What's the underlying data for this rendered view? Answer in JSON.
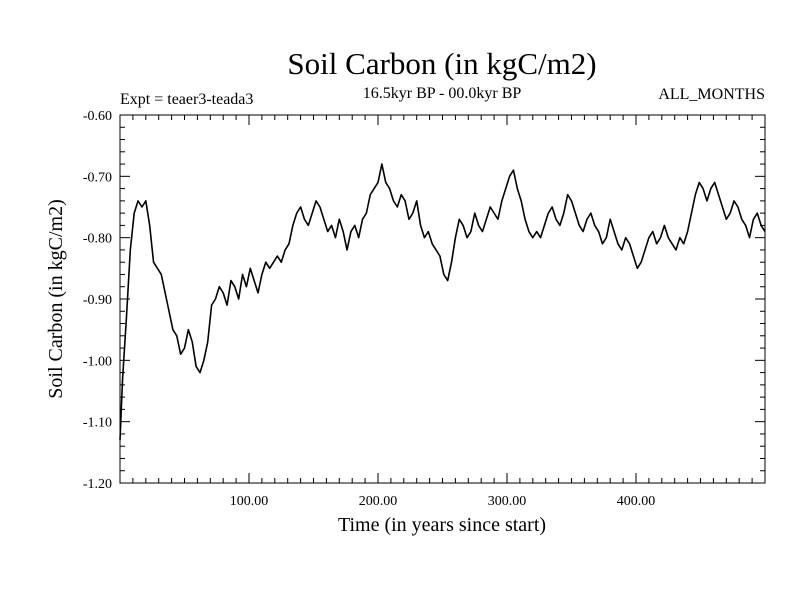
{
  "chart_data": {
    "type": "line",
    "title": "Soil Carbon (in kgC/m2)",
    "subtitle": "16.5kyr BP - 00.0kyr BP",
    "experiment": "Expt = teaer3-teada3",
    "months": "ALL_MONTHS",
    "xlabel": "Time (in years since start)",
    "ylabel": "Soil Carbon (in kgC/m2)",
    "xlim": [
      0,
      500
    ],
    "ylim": [
      -1.2,
      -0.6
    ],
    "x_ticks": [
      100,
      200,
      300,
      400
    ],
    "x_tick_labels": [
      "100.00",
      "200.00",
      "300.00",
      "400.00"
    ],
    "y_ticks": [
      -0.6,
      -0.7,
      -0.8,
      -0.9,
      -1.0,
      -1.1,
      -1.2
    ],
    "y_tick_labels": [
      "-0.60",
      "-0.70",
      "-0.80",
      "-0.90",
      "-1.00",
      "-1.10",
      "-1.20"
    ],
    "series": [
      {
        "name": "Soil Carbon",
        "color": "#000000",
        "x": [
          0,
          2,
          5,
          8,
          11,
          14,
          17,
          20,
          23,
          26,
          29,
          32,
          35,
          38,
          41,
          44,
          47,
          50,
          53,
          56,
          59,
          62,
          65,
          68,
          71,
          74,
          77,
          80,
          83,
          86,
          89,
          92,
          95,
          98,
          101,
          104,
          107,
          110,
          113,
          116,
          119,
          122,
          125,
          128,
          131,
          134,
          137,
          140,
          143,
          146,
          149,
          152,
          155,
          158,
          161,
          164,
          167,
          170,
          173,
          176,
          179,
          182,
          185,
          188,
          191,
          194,
          197,
          200,
          203,
          206,
          209,
          212,
          215,
          218,
          221,
          224,
          227,
          230,
          233,
          236,
          239,
          242,
          245,
          248,
          251,
          254,
          257,
          260,
          263,
          266,
          269,
          272,
          275,
          278,
          281,
          284,
          287,
          290,
          293,
          296,
          299,
          302,
          305,
          308,
          311,
          314,
          317,
          320,
          323,
          326,
          329,
          332,
          335,
          338,
          341,
          344,
          347,
          350,
          353,
          356,
          359,
          362,
          365,
          368,
          371,
          374,
          377,
          380,
          383,
          386,
          389,
          392,
          395,
          398,
          401,
          404,
          407,
          410,
          413,
          416,
          419,
          422,
          425,
          428,
          431,
          434,
          437,
          440,
          443,
          446,
          449,
          452,
          455,
          458,
          461,
          464,
          467,
          470,
          473,
          476,
          479,
          482,
          485,
          488,
          491,
          494,
          497,
          500
        ],
        "values": [
          -1.13,
          -1.03,
          -0.93,
          -0.82,
          -0.76,
          -0.74,
          -0.75,
          -0.74,
          -0.78,
          -0.84,
          -0.85,
          -0.86,
          -0.89,
          -0.92,
          -0.95,
          -0.96,
          -0.99,
          -0.98,
          -0.95,
          -0.97,
          -1.01,
          -1.02,
          -1.0,
          -0.97,
          -0.91,
          -0.9,
          -0.88,
          -0.89,
          -0.91,
          -0.87,
          -0.88,
          -0.9,
          -0.86,
          -0.88,
          -0.85,
          -0.87,
          -0.89,
          -0.86,
          -0.84,
          -0.85,
          -0.84,
          -0.83,
          -0.84,
          -0.82,
          -0.81,
          -0.78,
          -0.76,
          -0.75,
          -0.77,
          -0.78,
          -0.76,
          -0.74,
          -0.75,
          -0.77,
          -0.79,
          -0.78,
          -0.8,
          -0.77,
          -0.79,
          -0.82,
          -0.79,
          -0.78,
          -0.8,
          -0.77,
          -0.76,
          -0.73,
          -0.72,
          -0.71,
          -0.68,
          -0.71,
          -0.72,
          -0.74,
          -0.75,
          -0.73,
          -0.74,
          -0.77,
          -0.76,
          -0.74,
          -0.78,
          -0.8,
          -0.79,
          -0.81,
          -0.82,
          -0.83,
          -0.86,
          -0.87,
          -0.84,
          -0.8,
          -0.77,
          -0.78,
          -0.8,
          -0.79,
          -0.76,
          -0.78,
          -0.79,
          -0.77,
          -0.75,
          -0.76,
          -0.77,
          -0.74,
          -0.72,
          -0.7,
          -0.69,
          -0.72,
          -0.74,
          -0.77,
          -0.79,
          -0.8,
          -0.79,
          -0.8,
          -0.78,
          -0.76,
          -0.75,
          -0.77,
          -0.78,
          -0.76,
          -0.73,
          -0.74,
          -0.76,
          -0.78,
          -0.79,
          -0.77,
          -0.76,
          -0.78,
          -0.79,
          -0.81,
          -0.8,
          -0.77,
          -0.79,
          -0.81,
          -0.82,
          -0.8,
          -0.81,
          -0.83,
          -0.85,
          -0.84,
          -0.82,
          -0.8,
          -0.79,
          -0.81,
          -0.8,
          -0.78,
          -0.8,
          -0.81,
          -0.82,
          -0.8,
          -0.81,
          -0.79,
          -0.76,
          -0.73,
          -0.71,
          -0.72,
          -0.74,
          -0.72,
          -0.71,
          -0.73,
          -0.75,
          -0.77,
          -0.76,
          -0.74,
          -0.75,
          -0.77,
          -0.78,
          -0.8,
          -0.77,
          -0.76,
          -0.78,
          -0.79
        ]
      }
    ]
  }
}
